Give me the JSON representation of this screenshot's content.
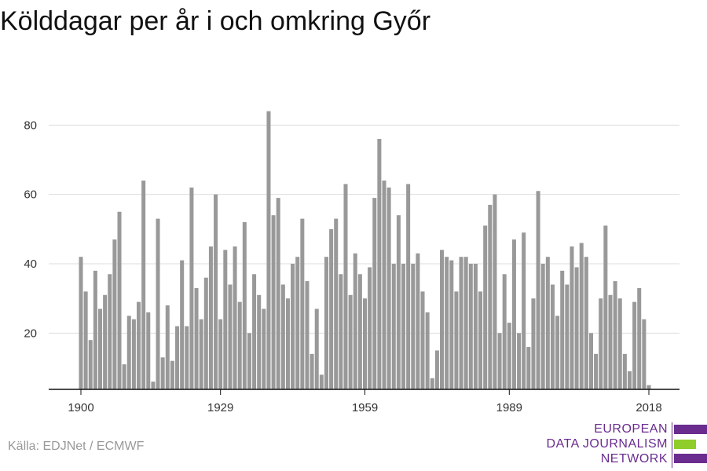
{
  "title": "Kölddagar per år i och omkring Győr",
  "source": "Källa: EDJNet / ECMWF",
  "logo": {
    "lines": [
      "EUROPEAN",
      "DATA JOURNALISM",
      "NETWORK"
    ],
    "colors": {
      "purple": "#6a2c8f",
      "green": "#8fcd2b"
    }
  },
  "colors": {
    "bar": "#999999",
    "grid": "#dddddd",
    "axis": "#111111"
  },
  "chart_data": {
    "type": "bar",
    "x_start": 1900,
    "x_end": 2018,
    "xticks": [
      1900,
      1929,
      1959,
      1989,
      2018
    ],
    "yticks": [
      20,
      40,
      60,
      80
    ],
    "ylim": [
      4,
      86
    ],
    "grid": true,
    "years": [
      1900,
      1901,
      1902,
      1903,
      1904,
      1905,
      1906,
      1907,
      1908,
      1909,
      1910,
      1911,
      1912,
      1913,
      1914,
      1915,
      1916,
      1917,
      1918,
      1919,
      1920,
      1921,
      1922,
      1923,
      1924,
      1925,
      1926,
      1927,
      1928,
      1929,
      1930,
      1931,
      1932,
      1933,
      1934,
      1935,
      1936,
      1937,
      1938,
      1939,
      1940,
      1941,
      1942,
      1943,
      1944,
      1945,
      1946,
      1947,
      1948,
      1949,
      1950,
      1951,
      1952,
      1953,
      1954,
      1955,
      1956,
      1957,
      1958,
      1959,
      1960,
      1961,
      1962,
      1963,
      1964,
      1965,
      1966,
      1967,
      1968,
      1969,
      1970,
      1971,
      1972,
      1973,
      1974,
      1975,
      1976,
      1977,
      1978,
      1979,
      1980,
      1981,
      1982,
      1983,
      1984,
      1985,
      1986,
      1987,
      1988,
      1989,
      1990,
      1991,
      1992,
      1993,
      1994,
      1995,
      1996,
      1997,
      1998,
      1999,
      2000,
      2001,
      2002,
      2003,
      2004,
      2005,
      2006,
      2007,
      2008,
      2009,
      2010,
      2011,
      2012,
      2013,
      2014,
      2015,
      2016,
      2017,
      2018
    ],
    "values": [
      42,
      32,
      18,
      38,
      27,
      31,
      37,
      47,
      55,
      11,
      25,
      24,
      29,
      64,
      26,
      6,
      53,
      13,
      28,
      12,
      22,
      41,
      22,
      62,
      33,
      24,
      36,
      45,
      60,
      24,
      44,
      34,
      45,
      29,
      52,
      20,
      37,
      31,
      27,
      84,
      54,
      59,
      34,
      30,
      40,
      42,
      53,
      35,
      14,
      27,
      8,
      42,
      50,
      53,
      37,
      63,
      31,
      43,
      37,
      30,
      39,
      59,
      76,
      64,
      62,
      40,
      54,
      40,
      63,
      40,
      43,
      32,
      26,
      7,
      15,
      44,
      42,
      41,
      32,
      42,
      42,
      40,
      40,
      32,
      51,
      57,
      60,
      20,
      37,
      23,
      47,
      20,
      49,
      16,
      30,
      61,
      40,
      42,
      34,
      25,
      38,
      34,
      45,
      39,
      46,
      42,
      20,
      14,
      30,
      51,
      31,
      35,
      30,
      14,
      9,
      29,
      33,
      24,
      5
    ]
  }
}
